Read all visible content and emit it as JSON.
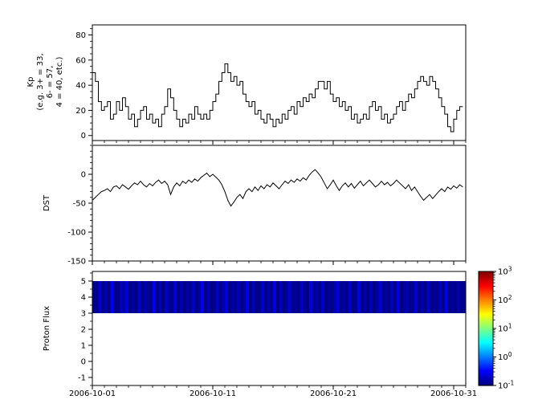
{
  "figure": {
    "background_color": "#ffffff"
  },
  "chart_data": [
    {
      "type": "line",
      "step": true,
      "ylabel_lines": [
        "Kp",
        "(e.g. 3+ = 33,",
        "6- = 57,",
        "4 = 40, etc.)"
      ],
      "x_start_date": "2006-10-01",
      "sample_interval_hours": 6,
      "xlim_days": [
        0,
        31
      ],
      "xticks_days": [
        0,
        10,
        20,
        30
      ],
      "ylim": [
        -4,
        88
      ],
      "yticks": [
        0,
        20,
        40,
        60,
        80
      ],
      "ytick_minor_step": 5,
      "line_color": "#000000",
      "values": [
        50,
        43,
        27,
        20,
        23,
        27,
        13,
        17,
        27,
        20,
        30,
        23,
        13,
        17,
        7,
        13,
        20,
        23,
        13,
        17,
        10,
        13,
        7,
        17,
        23,
        37,
        30,
        20,
        13,
        7,
        13,
        10,
        17,
        13,
        23,
        17,
        13,
        17,
        13,
        20,
        27,
        33,
        43,
        50,
        57,
        50,
        43,
        47,
        40,
        43,
        33,
        27,
        23,
        27,
        17,
        20,
        13,
        10,
        17,
        13,
        7,
        13,
        10,
        17,
        13,
        20,
        23,
        17,
        27,
        23,
        30,
        27,
        33,
        30,
        37,
        43,
        43,
        37,
        43,
        33,
        27,
        30,
        23,
        27,
        20,
        23,
        13,
        17,
        10,
        13,
        17,
        13,
        23,
        27,
        20,
        23,
        13,
        17,
        10,
        13,
        17,
        23,
        27,
        20,
        27,
        33,
        30,
        37,
        43,
        47,
        43,
        40,
        47,
        43,
        37,
        30,
        23,
        17,
        7,
        3,
        13,
        20,
        23,
        23
      ]
    },
    {
      "type": "line",
      "step": false,
      "ylabel": "DST",
      "x_start_date": "2006-10-01",
      "sample_interval_hours": 6,
      "xlim_days": [
        0,
        31
      ],
      "xticks_days": [
        0,
        10,
        20,
        30
      ],
      "ylim": [
        -150,
        50
      ],
      "yticks": [
        0,
        -50,
        -100,
        -150
      ],
      "ytick_minor_step": 10,
      "line_color": "#000000",
      "values": [
        -45,
        -40,
        -35,
        -30,
        -28,
        -25,
        -30,
        -22,
        -20,
        -25,
        -18,
        -22,
        -26,
        -20,
        -15,
        -18,
        -12,
        -18,
        -22,
        -16,
        -20,
        -14,
        -10,
        -16,
        -12,
        -18,
        -35,
        -22,
        -15,
        -20,
        -12,
        -16,
        -10,
        -14,
        -8,
        -12,
        -6,
        -2,
        2,
        -4,
        0,
        -5,
        -10,
        -18,
        -30,
        -45,
        -55,
        -48,
        -40,
        -35,
        -42,
        -30,
        -25,
        -30,
        -22,
        -28,
        -20,
        -25,
        -18,
        -22,
        -15,
        -20,
        -25,
        -18,
        -12,
        -16,
        -10,
        -14,
        -8,
        -12,
        -6,
        -10,
        -2,
        4,
        8,
        2,
        -5,
        -15,
        -25,
        -18,
        -10,
        -20,
        -28,
        -20,
        -15,
        -22,
        -16,
        -24,
        -18,
        -12,
        -20,
        -15,
        -10,
        -16,
        -22,
        -18,
        -12,
        -18,
        -14,
        -20,
        -16,
        -10,
        -15,
        -20,
        -25,
        -18,
        -28,
        -22,
        -30,
        -38,
        -45,
        -40,
        -35,
        -42,
        -36,
        -30,
        -25,
        -30,
        -22,
        -26,
        -20,
        -24,
        -18,
        -22
      ]
    },
    {
      "type": "heatmap",
      "ylabel": "Proton Flux",
      "x_start_date": "2006-10-01",
      "sample_interval_hours": 6,
      "xlim_days": [
        0,
        31
      ],
      "xticks_days": [
        0,
        10,
        20,
        30
      ],
      "xtick_labels": [
        "2006-10-01",
        "2006-10-11",
        "2006-10-21",
        "2006-10-31"
      ],
      "ylim": [
        -1.5,
        5.6
      ],
      "yticks": [
        5,
        4,
        3,
        2,
        1,
        0,
        -1
      ],
      "ytick_minor_step": 0.5,
      "band_y": [
        3,
        5
      ],
      "values": [
        0.12,
        0.08,
        0.22,
        0.1,
        0.15,
        0.07,
        0.3,
        0.11,
        0.09,
        0.18,
        0.13,
        0.25,
        0.08,
        0.14,
        0.1,
        0.2,
        0.09,
        0.16,
        0.12,
        0.07,
        0.28,
        0.11,
        0.15,
        0.09,
        0.19,
        0.13,
        0.08,
        0.24,
        0.1,
        0.17,
        0.07,
        0.14,
        0.11,
        0.21,
        0.09,
        0.13,
        0.26,
        0.1,
        0.16,
        0.08,
        0.12,
        0.19,
        0.07,
        0.15,
        0.23,
        0.09,
        0.14,
        0.11,
        0.18,
        0.08,
        0.13,
        0.27,
        0.1,
        0.16,
        0.09,
        0.12,
        0.2,
        0.07,
        0.15,
        0.11,
        0.24,
        0.09,
        0.17,
        0.08,
        0.13,
        0.22,
        0.1,
        0.14,
        0.07,
        0.18,
        0.12,
        0.09,
        0.25,
        0.11,
        0.15,
        0.08,
        0.2,
        0.1,
        0.13,
        0.07,
        0.16,
        0.23,
        0.09,
        0.14,
        0.11,
        0.19,
        0.08,
        0.12,
        0.26,
        0.1,
        0.15,
        0.09,
        0.17,
        0.07,
        0.13,
        0.21,
        0.11,
        0.14,
        0.08,
        0.18,
        0.1,
        0.24,
        0.09,
        0.13,
        0.16,
        0.07,
        0.12,
        0.22,
        0.08,
        0.15,
        0.1,
        0.19,
        0.09,
        0.14,
        0.07,
        0.17,
        0.11,
        0.25,
        0.08,
        0.13,
        0.1,
        0.16,
        0.09,
        0.12
      ],
      "colorbar": {
        "scale": "log",
        "colormap": "jet",
        "vmin_exponent": -1,
        "vmax_exponent": 3,
        "tick_exponents": [
          3,
          2,
          1,
          0,
          -1
        ]
      }
    }
  ]
}
